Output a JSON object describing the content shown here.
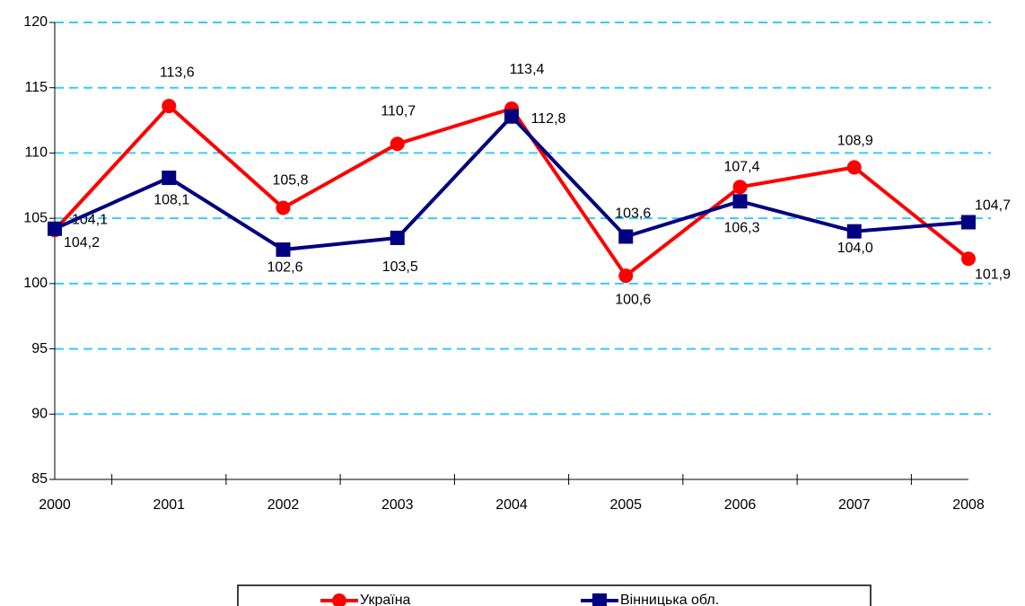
{
  "chart_data": {
    "type": "line",
    "categories": [
      "2000",
      "2001",
      "2002",
      "2003",
      "2004",
      "2005",
      "2006",
      "2007",
      "2008"
    ],
    "series": [
      {
        "name": "Україна",
        "color": "#ff0000",
        "marker": "circle",
        "values": [
          104.1,
          113.6,
          105.8,
          110.7,
          113.4,
          100.6,
          107.4,
          108.9,
          101.9
        ],
        "value_labels": [
          "104,1",
          "113,6",
          "105,8",
          "110,7",
          "113,4",
          "100,6",
          "107,4",
          "108,9",
          "101,9"
        ]
      },
      {
        "name": "Вінницька обл.",
        "color": "#000080",
        "marker": "square",
        "values": [
          104.2,
          108.1,
          102.6,
          103.5,
          112.8,
          103.6,
          106.3,
          104.0,
          104.7
        ],
        "value_labels": [
          "104,2",
          "108,1",
          "102,6",
          "103,5",
          "112,8",
          "103,6",
          "106,3",
          "104,0",
          "104,7"
        ]
      }
    ],
    "ylim": [
      85,
      120
    ],
    "yticks": [
      85,
      90,
      95,
      100,
      105,
      110,
      115,
      120
    ],
    "grid": true,
    "grid_color": "#33ccff",
    "legend": "bottom"
  }
}
